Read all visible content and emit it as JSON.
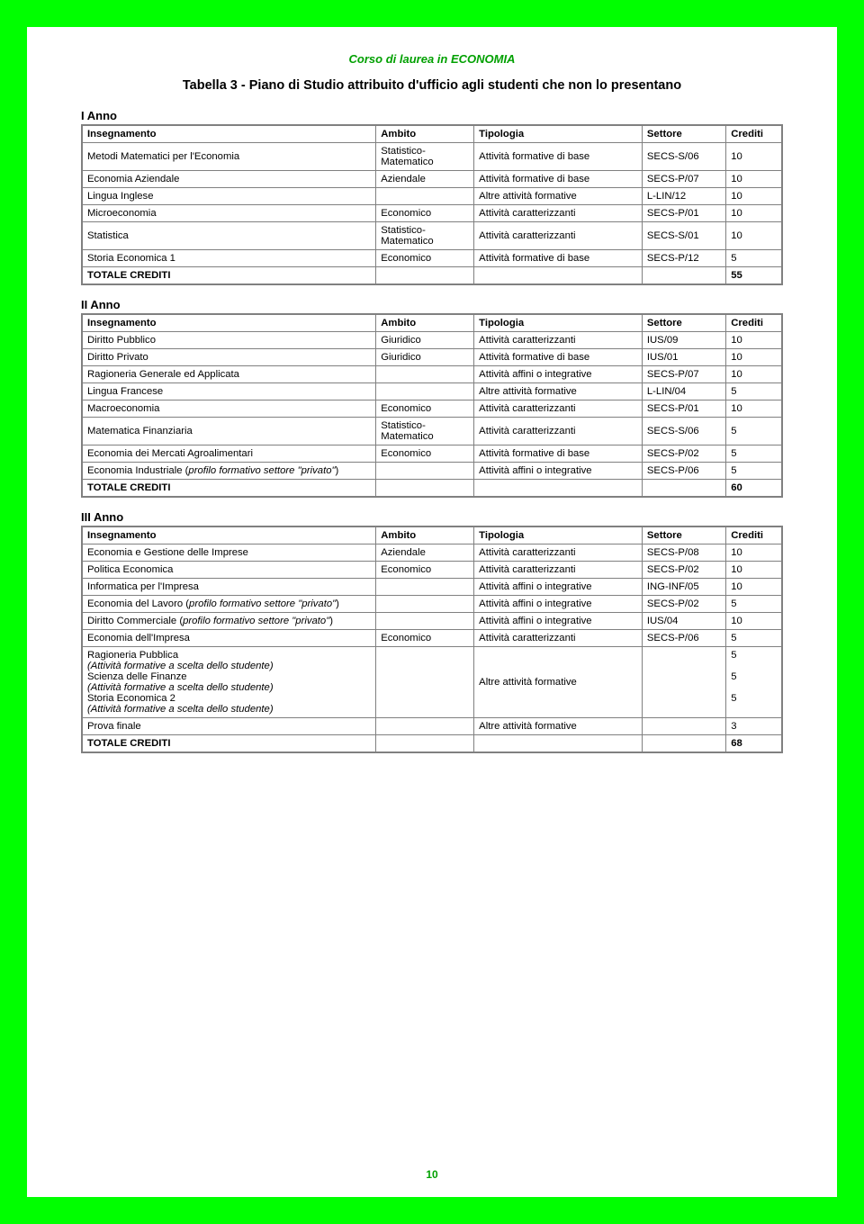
{
  "course_header": "Corso di laurea in ECONOMIA",
  "main_title": "Tabella 3 - Piano di Studio attribuito d'ufficio agli studenti che non lo presentano",
  "page_number": "10",
  "headers": {
    "insegnamento": "Insegnamento",
    "ambito": "Ambito",
    "tipologia": "Tipologia",
    "settore": "Settore",
    "crediti": "Crediti"
  },
  "totale": "TOTALE CREDITI",
  "year1": {
    "title": "I Anno",
    "rows": [
      {
        "ins": "Metodi Matematici per l'Economia",
        "amb": "Statistico-\nMatematico",
        "tip": "Attività formative di base",
        "set": "SECS-S/06",
        "cre": "10"
      },
      {
        "ins": "Economia Aziendale",
        "amb": "Aziendale",
        "tip": "Attività formative di base",
        "set": "SECS-P/07",
        "cre": "10"
      },
      {
        "ins": "Lingua Inglese",
        "amb": "",
        "tip": "Altre attività formative",
        "set": "L-LIN/12",
        "cre": "10"
      },
      {
        "ins": "Microeconomia",
        "amb": "Economico",
        "tip": "Attività caratterizzanti",
        "set": "SECS-P/01",
        "cre": "10"
      },
      {
        "ins": "Statistica",
        "amb": "Statistico-\nMatematico",
        "tip": "Attività caratterizzanti",
        "set": "SECS-S/01",
        "cre": "10"
      },
      {
        "ins": "Storia Economica 1",
        "amb": "Economico",
        "tip": "Attività formative di base",
        "set": "SECS-P/12",
        "cre": "5"
      }
    ],
    "total": "55"
  },
  "year2": {
    "title": "II Anno",
    "rows": [
      {
        "ins": "Diritto Pubblico",
        "amb": "Giuridico",
        "tip": "Attività caratterizzanti",
        "set": "IUS/09",
        "cre": "10"
      },
      {
        "ins": "Diritto Privato",
        "amb": "Giuridico",
        "tip": "Attività formative di base",
        "set": "IUS/01",
        "cre": "10"
      },
      {
        "ins": "Ragioneria Generale ed Applicata",
        "amb": "",
        "tip": "Attività affini o integrative",
        "set": "SECS-P/07",
        "cre": "10"
      },
      {
        "ins": "Lingua Francese",
        "amb": "",
        "tip": "Altre attività formative",
        "set": "L-LIN/04",
        "cre": "5"
      },
      {
        "ins": "Macroeconomia",
        "amb": "Economico",
        "tip": "Attività caratterizzanti",
        "set": "SECS-P/01",
        "cre": "10"
      },
      {
        "ins": "Matematica Finanziaria",
        "amb": "Statistico-\nMatematico",
        "tip": "Attività caratterizzanti",
        "set": "SECS-S/06",
        "cre": "5"
      },
      {
        "ins": "Economia dei Mercati Agroalimentari",
        "amb": "Economico",
        "tip": "Attività formative di base",
        "set": "SECS-P/02",
        "cre": "5"
      },
      {
        "ins_html": "Economia Industriale  (<span class='italic'>profilo formativo settore \"privato\"</span>)",
        "amb": "",
        "tip": "Attività affini o integrative",
        "set": "SECS-P/06",
        "cre": "5"
      }
    ],
    "total": "60"
  },
  "year3": {
    "title": "III Anno",
    "rows": [
      {
        "ins": "Economia e Gestione delle Imprese",
        "amb": "Aziendale",
        "tip": "Attività caratterizzanti",
        "set": "SECS-P/08",
        "cre": "10"
      },
      {
        "ins": "Politica Economica",
        "amb": "Economico",
        "tip": "Attività caratterizzanti",
        "set": "SECS-P/02",
        "cre": "10"
      },
      {
        "ins": "Informatica per l'Impresa",
        "amb": "",
        "tip": "Attività affini o integrative",
        "set": "ING-INF/05",
        "cre": "10"
      },
      {
        "ins_html": "Economia del Lavoro (<span class='italic'>profilo formativo settore \"privato\"</span>)",
        "amb": "",
        "tip": "Attività affini o integrative",
        "set": "SECS-P/02",
        "cre": "5"
      },
      {
        "ins_html": "Diritto Commerciale (<span class='italic'>profilo formativo settore \"privato\"</span>)",
        "amb": "",
        "tip": "Attività affini o integrative",
        "set": "IUS/04",
        "cre": "10"
      },
      {
        "ins": "Economia dell'Impresa",
        "amb": "Economico",
        "tip": "Attività caratterizzanti",
        "set": "SECS-P/06",
        "cre": "5"
      }
    ],
    "merged": {
      "lines": [
        {
          "main": "Ragioneria Pubblica",
          "note": "(Attività formative a scelta dello studente)"
        },
        {
          "main": "Scienza delle Finanze",
          "note": "(Attività formative a scelta dello studente)"
        },
        {
          "main": "Storia Economica 2",
          "note": "(Attività formative a scelta dello studente)"
        }
      ],
      "tip": "Altre attività formative",
      "credits": [
        "5",
        "5",
        "5"
      ]
    },
    "prova": {
      "ins": "Prova finale",
      "tip": "Altre attività formative",
      "cre": "3"
    },
    "total": "68"
  }
}
